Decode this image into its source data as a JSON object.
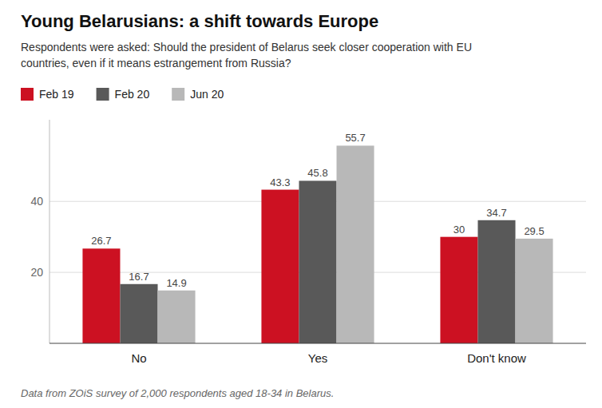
{
  "chart_data": {
    "type": "bar",
    "title": "Young Belarusians: a shift towards Europe",
    "subtitle": "Respondents were asked: Should the president of Belarus seek closer cooperation with EU\ncountries, even if it means estrangement from Russia?",
    "annotations": [
      "Data from ZOiS survey of 2,000 respondents aged 18-34 in Belarus."
    ],
    "categories": [
      "No",
      "Yes",
      "Don't know"
    ],
    "series": [
      {
        "name": "Feb 19",
        "color": "#cc1122",
        "values": [
          26.7,
          43.3,
          30.0
        ]
      },
      {
        "name": "Feb 20",
        "color": "#595959",
        "values": [
          16.7,
          45.8,
          34.7
        ]
      },
      {
        "name": "Jun 20",
        "color": "#b8b8b8",
        "values": [
          14.9,
          55.7,
          29.5
        ]
      }
    ],
    "ylim": [
      0,
      63
    ],
    "yticks": [
      20,
      40
    ],
    "grid": true,
    "legend": "top-left",
    "data_labels": true
  }
}
